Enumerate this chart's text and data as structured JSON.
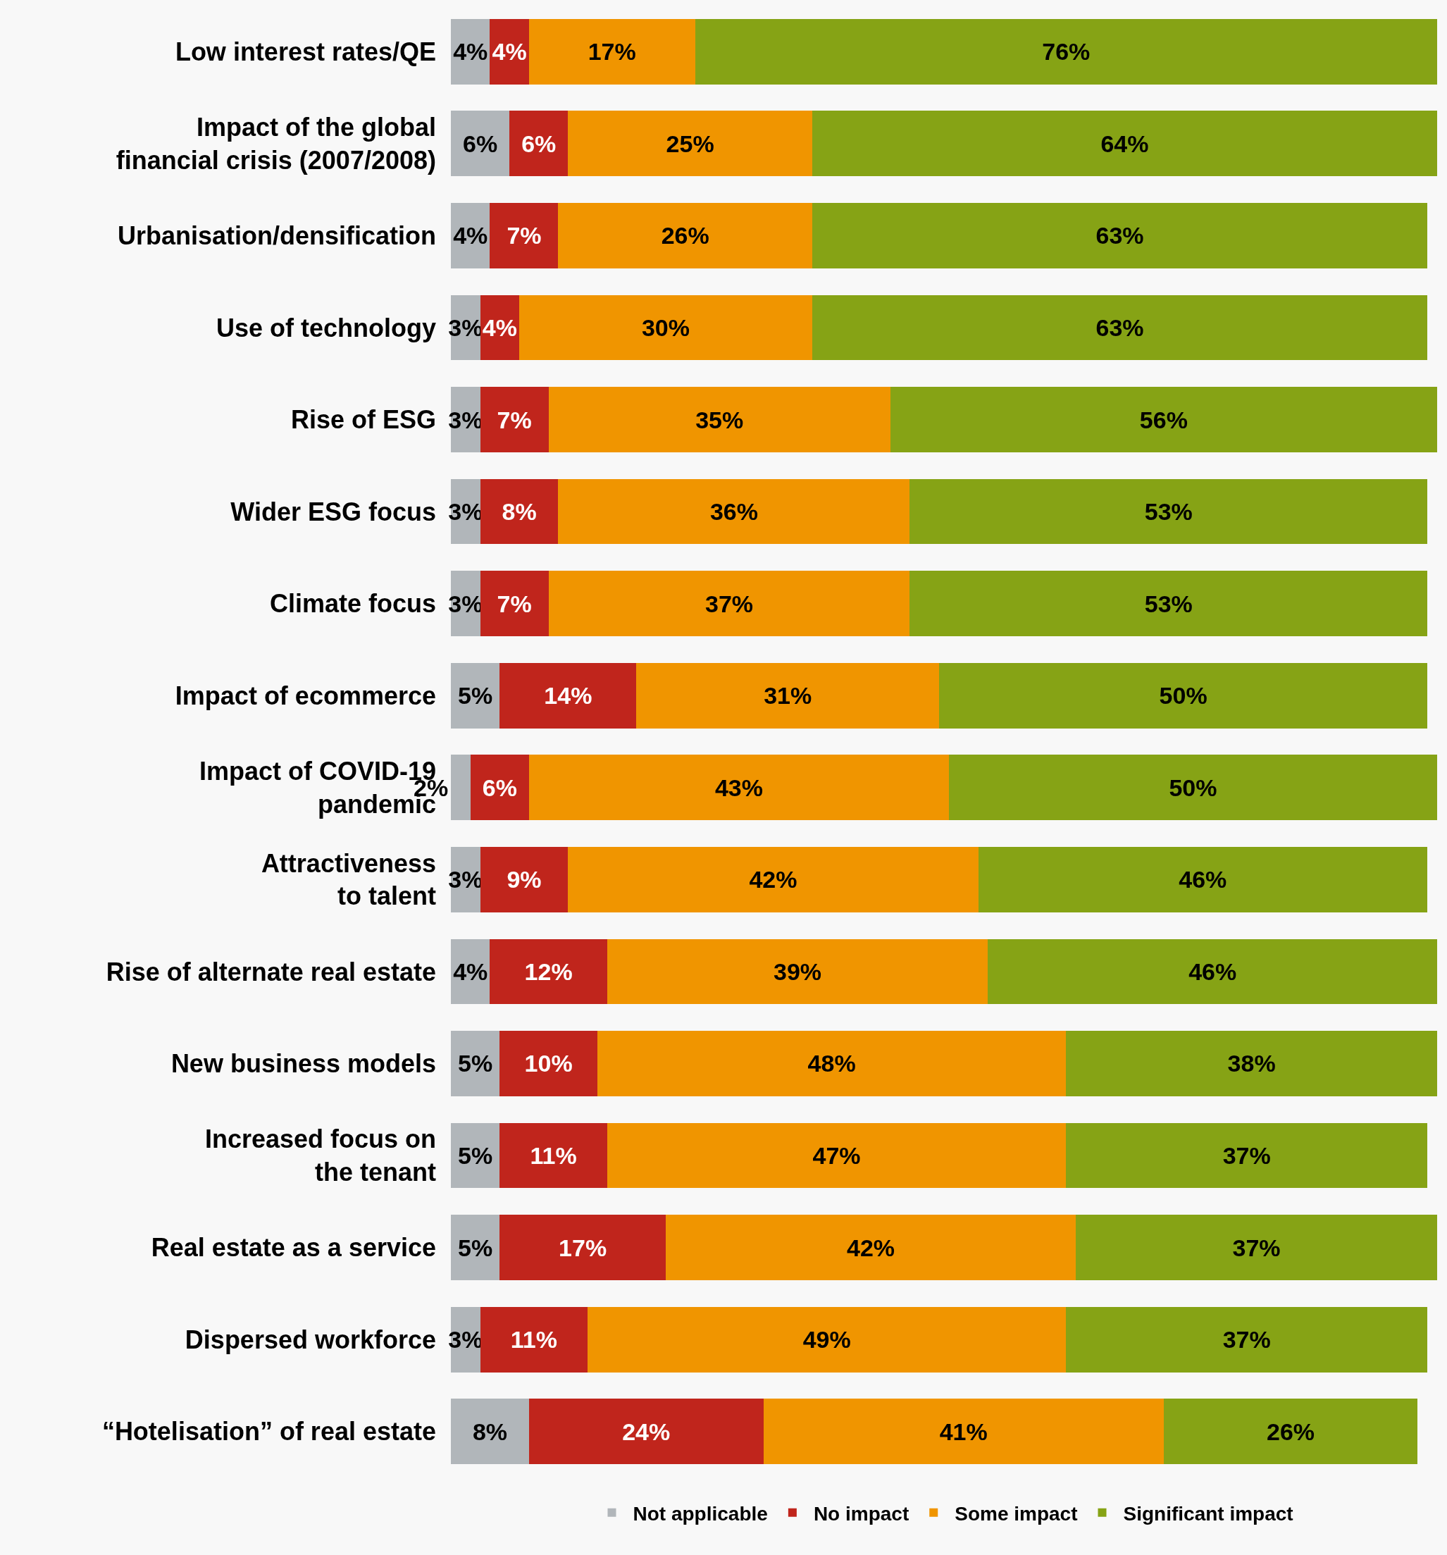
{
  "chart_data": {
    "type": "bar",
    "orientation": "horizontal",
    "stacked": true,
    "legend": "bottom",
    "categories": [
      "Low interest rates/QE",
      "Impact of the global\nfinancial crisis (2007/2008)",
      "Urbanisation/densification",
      "Use of technology",
      "Rise of ESG",
      "Wider ESG focus",
      "Climate focus",
      "Impact of ecommerce",
      "Impact of COVID-19\npandemic",
      "Attractiveness\nto talent",
      "Rise of alternate real estate",
      "New business models",
      "Increased focus on\nthe tenant",
      "Real estate as a service",
      "Dispersed workforce",
      "“Hotelisation” of real estate"
    ],
    "series": [
      {
        "name": "Not applicable",
        "color": "#b1b6ba",
        "values": [
          4,
          6,
          4,
          3,
          3,
          3,
          3,
          5,
          2,
          3,
          4,
          5,
          5,
          5,
          3,
          8
        ],
        "value_labels": [
          "4%",
          "6%",
          "4%",
          "3%",
          "3%",
          "3%",
          "3%",
          "5%",
          "2%",
          "3%",
          "4%",
          "5%",
          "5%",
          "5%",
          "3%",
          "8%"
        ]
      },
      {
        "name": "No impact",
        "color": "#c0251c",
        "values": [
          4,
          6,
          7,
          4,
          7,
          8,
          7,
          14,
          6,
          9,
          12,
          10,
          11,
          17,
          11,
          24
        ],
        "value_labels": [
          "4%",
          "6%",
          "7%",
          "4%",
          "7%",
          "8%",
          "7%",
          "14%",
          "6%",
          "9%",
          "12%",
          "10%",
          "11%",
          "17%",
          "11%",
          "24%"
        ]
      },
      {
        "name": "Some impact",
        "color": "#f09500",
        "values": [
          17,
          25,
          26,
          30,
          35,
          36,
          37,
          31,
          43,
          42,
          39,
          48,
          47,
          42,
          49,
          41
        ],
        "value_labels": [
          "17%",
          "25%",
          "26%",
          "30%",
          "35%",
          "36%",
          "37%",
          "31%",
          "43%",
          "42%",
          "39%",
          "48%",
          "47%",
          "42%",
          "49%",
          "41%"
        ]
      },
      {
        "name": "Significant impact",
        "color": "#86a315",
        "values": [
          76,
          64,
          63,
          63,
          56,
          53,
          53,
          50,
          50,
          46,
          46,
          38,
          37,
          37,
          37,
          26
        ],
        "value_labels": [
          "76%",
          "64%",
          "63%",
          "63%",
          "56%",
          "53%",
          "53%",
          "50%",
          "50%",
          "46%",
          "46%",
          "38%",
          "37%",
          "37%",
          "37%",
          "26%"
        ]
      }
    ]
  }
}
